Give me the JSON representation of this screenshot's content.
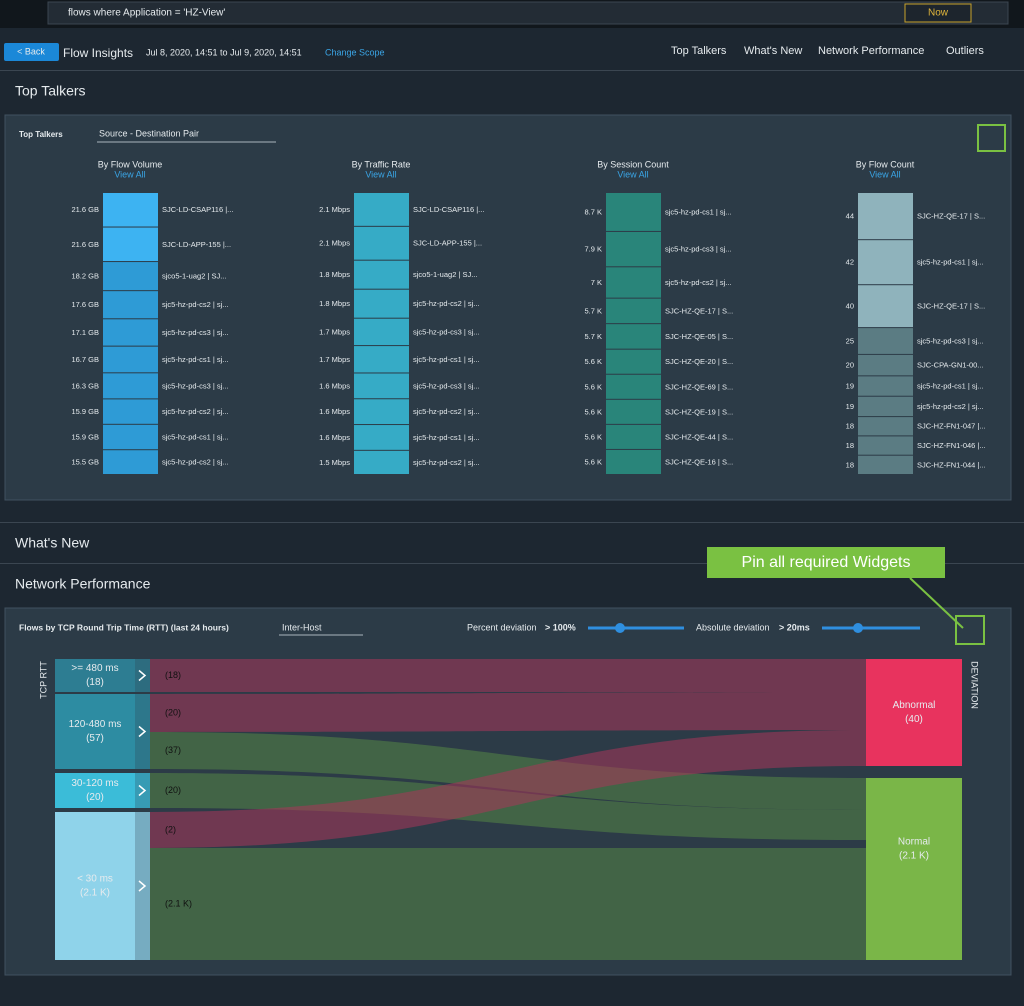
{
  "search": {
    "query": "flows where Application = 'HZ-View'",
    "time": "Now"
  },
  "header": {
    "back": "< Back",
    "title": "Flow Insights",
    "range": "Jul 8, 2020, 14:51 to Jul 9, 2020, 14:51",
    "change_scope": "Change Scope",
    "nav": [
      "Top Talkers",
      "What's New",
      "Network Performance",
      "Outliers"
    ]
  },
  "sections": [
    "Top Talkers",
    "What's New",
    "Network Performance"
  ],
  "top_talkers": {
    "label": "Top Talkers",
    "selector": "Source - Destination Pair",
    "columns": [
      {
        "title": "By Flow Volume",
        "view_all": "View All",
        "rows": [
          [
            "21.6 GB",
            "SJC-LD-CSAP116 |..."
          ],
          [
            "21.6 GB",
            "SJC-LD-APP-155 |..."
          ],
          [
            "18.2 GB",
            "sjco5-1-uag2 | SJ..."
          ],
          [
            "17.6 GB",
            "sjc5-hz-pd-cs2 | sj..."
          ],
          [
            "17.1 GB",
            "sjc5-hz-pd-cs3 | sj..."
          ],
          [
            "16.7 GB",
            "sjc5-hz-pd-cs1 | sj..."
          ],
          [
            "16.3 GB",
            "sjc5-hz-pd-cs3 | sj..."
          ],
          [
            "15.9 GB",
            "sjc5-hz-pd-cs2 | sj..."
          ],
          [
            "15.9 GB",
            "sjc5-hz-pd-cs1 | sj..."
          ],
          [
            "15.5 GB",
            "sjc5-hz-pd-cs2 | sj..."
          ]
        ]
      },
      {
        "title": "By Traffic Rate",
        "view_all": "View All",
        "rows": [
          [
            "2.1 Mbps",
            "SJC-LD-CSAP116 |..."
          ],
          [
            "2.1 Mbps",
            "SJC-LD-APP-155 |..."
          ],
          [
            "1.8 Mbps",
            "sjco5-1-uag2 | SJ..."
          ],
          [
            "1.8 Mbps",
            "sjc5-hz-pd-cs2 | sj..."
          ],
          [
            "1.7 Mbps",
            "sjc5-hz-pd-cs3 | sj..."
          ],
          [
            "1.7 Mbps",
            "sjc5-hz-pd-cs1 | sj..."
          ],
          [
            "1.6 Mbps",
            "sjc5-hz-pd-cs3 | sj..."
          ],
          [
            "1.6 Mbps",
            "sjc5-hz-pd-cs2 | sj..."
          ],
          [
            "1.6 Mbps",
            "sjc5-hz-pd-cs1 | sj..."
          ],
          [
            "1.5 Mbps",
            "sjc5-hz-pd-cs2 | sj..."
          ]
        ]
      },
      {
        "title": "By Session Count",
        "view_all": "View All",
        "rows": [
          [
            "8.7 K",
            "sjc5-hz-pd-cs1 | sj..."
          ],
          [
            "7.9 K",
            "sjc5-hz-pd-cs3 | sj..."
          ],
          [
            "7 K",
            "sjc5-hz-pd-cs2 | sj..."
          ],
          [
            "5.7 K",
            "SJC-HZ-QE-17 | S..."
          ],
          [
            "5.7 K",
            "SJC-HZ-QE-05 | S..."
          ],
          [
            "5.6 K",
            "SJC-HZ-QE-20 | S..."
          ],
          [
            "5.6 K",
            "SJC-HZ-QE-69 | S..."
          ],
          [
            "5.6 K",
            "SJC-HZ-QE-19 | S..."
          ],
          [
            "5.6 K",
            "SJC-HZ-QE-44 | S..."
          ],
          [
            "5.6 K",
            "SJC-HZ-QE-16 | S..."
          ]
        ]
      },
      {
        "title": "By Flow Count",
        "view_all": "View All",
        "rows": [
          [
            "44",
            "SJC-HZ-QE-17 | S..."
          ],
          [
            "42",
            "sjc5-hz-pd-cs1 | sj..."
          ],
          [
            "40",
            "SJC-HZ-QE-17 | S..."
          ],
          [
            "25",
            "sjc5-hz-pd-cs3 | sj..."
          ],
          [
            "20",
            "SJC-CPA-GN1-00..."
          ],
          [
            "19",
            "sjc5-hz-pd-cs1 | sj..."
          ],
          [
            "19",
            "sjc5-hz-pd-cs2 | sj..."
          ],
          [
            "18",
            "SJC-HZ-FN1-047 |..."
          ],
          [
            "18",
            "SJC-HZ-FN1-046 |..."
          ],
          [
            "18",
            "SJC-HZ-FN1-044 |..."
          ]
        ]
      }
    ]
  },
  "callout": "Pin all required Widgets",
  "network_performance": {
    "title": "Flows by TCP Round Trip Time (RTT) (last 24 hours)",
    "selector": "Inter-Host",
    "percent_label": "Percent deviation",
    "percent_value": "> 100%",
    "absolute_label": "Absolute deviation",
    "absolute_value": "> 20ms",
    "axis_left": "TCP RTT",
    "axis_right": "DEVIATION",
    "left_nodes": [
      {
        "label": ">= 480 ms",
        "count": "(18)"
      },
      {
        "label": "120-480 ms",
        "count": "(57)"
      },
      {
        "label": "30-120 ms",
        "count": "(20)"
      },
      {
        "label": "< 30 ms",
        "count": "(2.1 K)"
      }
    ],
    "flows": [
      "(18)",
      "(20)",
      "(37)",
      "(20)",
      "(2)",
      "(2.1 K)"
    ],
    "right_nodes": [
      {
        "label": "Abnormal",
        "count": "(40)"
      },
      {
        "label": "Normal",
        "count": "(2.1 K)"
      }
    ]
  }
}
